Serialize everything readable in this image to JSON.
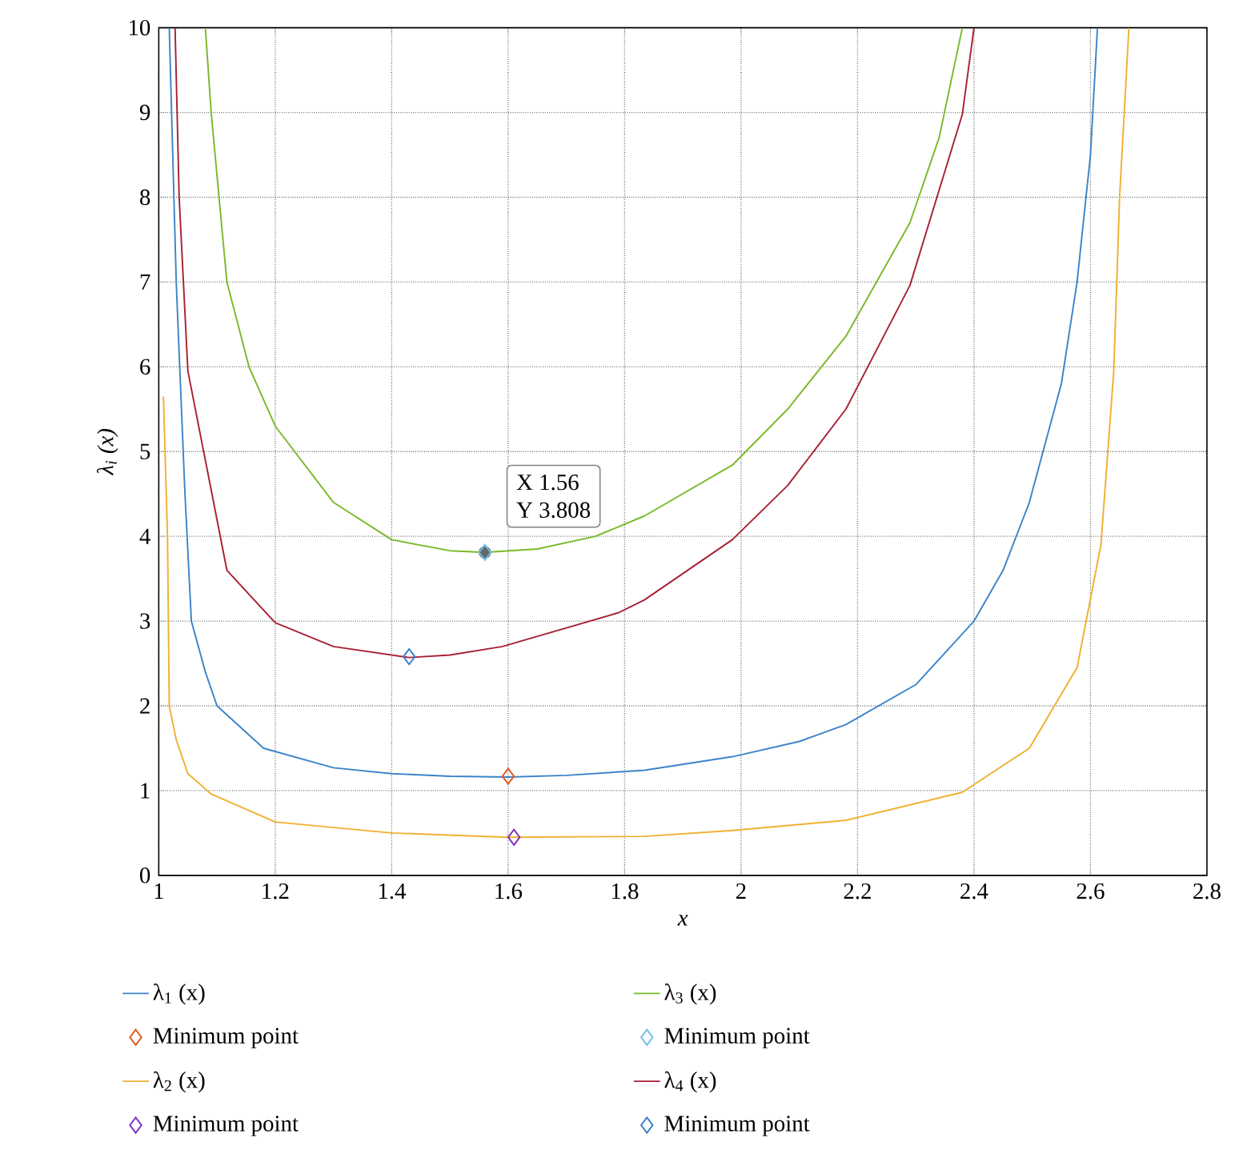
{
  "chart_data": {
    "type": "line",
    "xlabel": "x",
    "ylabel": "λ$_{i}$ (x)",
    "xlim": [
      1,
      2.8
    ],
    "ylim": [
      0,
      10
    ],
    "xticks": [
      1,
      1.2,
      1.4,
      1.6,
      1.8,
      2,
      2.2,
      2.4,
      2.6,
      2.8
    ],
    "yticks": [
      0,
      1,
      2,
      3,
      4,
      5,
      6,
      7,
      8,
      9,
      10
    ],
    "grid": true,
    "legend": "bottom",
    "line_style": "solid",
    "series": [
      {
        "name": "λ$_{1}$ (x)",
        "color": "#3b84c9",
        "x": [
          1.018,
          1.03,
          1.045,
          1.056,
          1.08,
          1.1,
          1.18,
          1.3,
          1.4,
          1.5,
          1.6,
          1.7,
          1.834,
          1.985,
          2.1,
          2.18,
          2.3,
          2.4,
          2.45,
          2.495,
          2.55,
          2.577,
          2.6,
          2.612
        ],
        "values": [
          10,
          7,
          4.5,
          3,
          2.4,
          2.0,
          1.5,
          1.27,
          1.2,
          1.17,
          1.16,
          1.18,
          1.24,
          1.4,
          1.58,
          1.78,
          2.25,
          3.0,
          3.6,
          4.4,
          5.8,
          7.0,
          8.5,
          10
        ]
      },
      {
        "name": "Minimum point",
        "type": "scatter",
        "marker": "diamond",
        "color": "#e0581f",
        "x": [
          1.6
        ],
        "values": [
          1.17
        ]
      },
      {
        "name": "λ$_{2}$ (x)",
        "color": "#f0b030",
        "x": [
          1.008,
          1.015,
          1.018,
          1.03,
          1.05,
          1.09,
          1.2,
          1.4,
          1.6,
          1.834,
          1.985,
          2.18,
          2.38,
          2.495,
          2.577,
          2.618,
          2.64,
          2.65,
          2.666
        ],
        "values": [
          5.65,
          4.0,
          2.0,
          1.6,
          1.2,
          0.96,
          0.63,
          0.5,
          0.45,
          0.46,
          0.53,
          0.65,
          0.98,
          1.5,
          2.45,
          3.9,
          5.95,
          8.0,
          10
        ]
      },
      {
        "name": "Minimum point",
        "type": "scatter",
        "marker": "diamond",
        "color": "#7e2fbe",
        "x": [
          1.61
        ],
        "values": [
          0.45
        ]
      },
      {
        "name": "λ$_{3}$ (x)",
        "color": "#7ab929",
        "x": [
          1.08,
          1.09,
          1.117,
          1.155,
          1.2,
          1.3,
          1.4,
          1.5,
          1.56,
          1.65,
          1.75,
          1.834,
          1.985,
          2.08,
          2.18,
          2.29,
          2.34,
          2.38
        ],
        "values": [
          10,
          9.0,
          7.0,
          6.0,
          5.3,
          4.4,
          3.96,
          3.83,
          3.81,
          3.85,
          4.0,
          4.24,
          4.84,
          5.5,
          6.36,
          7.7,
          8.7,
          10
        ]
      },
      {
        "name": "Minimum point",
        "type": "scatter",
        "marker": "diamond",
        "color": "#6cc0e8",
        "x": [
          1.56
        ],
        "values": [
          3.81
        ]
      },
      {
        "name": "λ$_{4}$ (x)",
        "color": "#a82035",
        "x": [
          1.028,
          1.035,
          1.05,
          1.117,
          1.2,
          1.3,
          1.43,
          1.5,
          1.59,
          1.79,
          1.834,
          1.985,
          2.08,
          2.18,
          2.29,
          2.38,
          2.4
        ],
        "values": [
          10,
          8,
          5.95,
          3.6,
          2.98,
          2.7,
          2.57,
          2.6,
          2.7,
          3.1,
          3.25,
          3.96,
          4.6,
          5.5,
          6.96,
          8.98,
          10
        ]
      },
      {
        "name": "Minimum point",
        "type": "scatter",
        "marker": "diamond",
        "color": "#3a7dc9",
        "x": [
          1.43
        ],
        "values": [
          2.58
        ]
      }
    ],
    "annotations": [
      "X 1.56",
      "Y 3.808"
    ]
  }
}
